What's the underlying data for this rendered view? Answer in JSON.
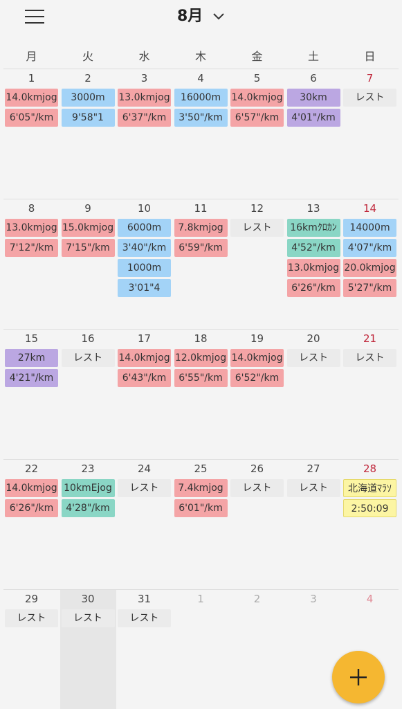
{
  "header": {
    "title": "8月"
  },
  "weekdays": [
    "月",
    "火",
    "水",
    "木",
    "金",
    "土",
    "日"
  ],
  "weeks": [
    {
      "days": [
        {
          "day": "1",
          "events": [
            {
              "text": "14.0kmjog",
              "color": "#f4a4a6"
            },
            {
              "text": "6'05\"/km",
              "color": "#f4a4a6"
            }
          ]
        },
        {
          "day": "2",
          "events": [
            {
              "text": "3000m",
              "color": "#a3d3f7"
            },
            {
              "text": "9'58\"1",
              "color": "#a3d3f7"
            }
          ]
        },
        {
          "day": "3",
          "events": [
            {
              "text": "13.0kmjog",
              "color": "#f4a4a6"
            },
            {
              "text": "6'37\"/km",
              "color": "#f4a4a6"
            }
          ]
        },
        {
          "day": "4",
          "events": [
            {
              "text": "16000m",
              "color": "#a3d3f7"
            },
            {
              "text": "3'50\"/km",
              "color": "#a3d3f7"
            }
          ]
        },
        {
          "day": "5",
          "events": [
            {
              "text": "14.0kmjog",
              "color": "#f4a4a6"
            },
            {
              "text": "6'57\"/km",
              "color": "#f4a4a6"
            }
          ]
        },
        {
          "day": "6",
          "events": [
            {
              "text": "30km",
              "color": "#bba7e2"
            },
            {
              "text": "4'01\"/km",
              "color": "#bba7e2"
            }
          ]
        },
        {
          "day": "7",
          "events": [
            {
              "text": "レスト",
              "color": "#ebebeb"
            }
          ]
        }
      ]
    },
    {
      "days": [
        {
          "day": "8",
          "events": [
            {
              "text": "13.0kmjog",
              "color": "#f4a4a6"
            },
            {
              "text": "7'12\"/km",
              "color": "#f4a4a6"
            }
          ]
        },
        {
          "day": "9",
          "events": [
            {
              "text": "15.0kmjog",
              "color": "#f4a4a6"
            },
            {
              "text": "7'15\"/km",
              "color": "#f4a4a6"
            }
          ]
        },
        {
          "day": "10",
          "events": [
            {
              "text": "6000m",
              "color": "#a3d3f7"
            },
            {
              "text": "3'40\"/km",
              "color": "#a3d3f7"
            },
            {
              "text": "1000m",
              "color": "#a3d3f7"
            },
            {
              "text": "3'01\"4",
              "color": "#a3d3f7"
            }
          ]
        },
        {
          "day": "11",
          "events": [
            {
              "text": "7.8kmjog",
              "color": "#f4a4a6"
            },
            {
              "text": "6'59\"/km",
              "color": "#f4a4a6"
            }
          ]
        },
        {
          "day": "12",
          "events": [
            {
              "text": "レスト",
              "color": "#ebebeb"
            }
          ]
        },
        {
          "day": "13",
          "events": [
            {
              "text": "16kmｸﾛｶﾝ",
              "color": "#8ad6c5"
            },
            {
              "text": "4'52\"/km",
              "color": "#8ad6c5"
            },
            {
              "text": "13.0kmjog",
              "color": "#f4a4a6"
            },
            {
              "text": "6'26\"/km",
              "color": "#f4a4a6"
            }
          ]
        },
        {
          "day": "14",
          "events": [
            {
              "text": "14000m",
              "color": "#a3d3f7"
            },
            {
              "text": "4'07\"/km",
              "color": "#a3d3f7"
            },
            {
              "text": "20.0kmjog",
              "color": "#f4a4a6"
            },
            {
              "text": "5'27\"/km",
              "color": "#f4a4a6"
            }
          ]
        }
      ]
    },
    {
      "days": [
        {
          "day": "15",
          "events": [
            {
              "text": "27km",
              "color": "#bba7e2"
            },
            {
              "text": "4'21\"/km",
              "color": "#bba7e2"
            }
          ]
        },
        {
          "day": "16",
          "events": [
            {
              "text": "レスト",
              "color": "#ebebeb"
            }
          ]
        },
        {
          "day": "17",
          "events": [
            {
              "text": "14.0kmjog",
              "color": "#f4a4a6"
            },
            {
              "text": "6'43\"/km",
              "color": "#f4a4a6"
            }
          ]
        },
        {
          "day": "18",
          "events": [
            {
              "text": "12.0kmjog",
              "color": "#f4a4a6"
            },
            {
              "text": "6'55\"/km",
              "color": "#f4a4a6"
            }
          ]
        },
        {
          "day": "19",
          "events": [
            {
              "text": "14.0kmjog",
              "color": "#f4a4a6"
            },
            {
              "text": "6'52\"/km",
              "color": "#f4a4a6"
            }
          ]
        },
        {
          "day": "20",
          "events": [
            {
              "text": "レスト",
              "color": "#ebebeb"
            }
          ]
        },
        {
          "day": "21",
          "events": [
            {
              "text": "レスト",
              "color": "#ebebeb"
            }
          ]
        }
      ]
    },
    {
      "days": [
        {
          "day": "22",
          "events": [
            {
              "text": "14.0kmjog",
              "color": "#f4a4a6"
            },
            {
              "text": "6'26\"/km",
              "color": "#f4a4a6"
            }
          ]
        },
        {
          "day": "23",
          "events": [
            {
              "text": "10kmEjog",
              "color": "#8ad6c5"
            },
            {
              "text": "4'28\"/km",
              "color": "#8ad6c5"
            }
          ]
        },
        {
          "day": "24",
          "events": [
            {
              "text": "レスト",
              "color": "#ebebeb"
            }
          ]
        },
        {
          "day": "25",
          "events": [
            {
              "text": "7.4kmjog",
              "color": "#f4a4a6"
            },
            {
              "text": "6'01\"/km",
              "color": "#f4a4a6"
            }
          ]
        },
        {
          "day": "26",
          "events": [
            {
              "text": "レスト",
              "color": "#ebebeb"
            }
          ]
        },
        {
          "day": "27",
          "events": [
            {
              "text": "レスト",
              "color": "#ebebeb"
            }
          ]
        },
        {
          "day": "28",
          "events": [
            {
              "text": "北海道ﾏﾗｿ",
              "color": "#fcf5a3"
            },
            {
              "text": "2:50:09",
              "color": "#fcf5a3"
            }
          ]
        }
      ]
    },
    {
      "days": [
        {
          "day": "29",
          "events": [
            {
              "text": "レスト",
              "color": "#ebebeb"
            }
          ]
        },
        {
          "day": "30",
          "events": [
            {
              "text": "レスト",
              "color": "#ebebeb"
            }
          ]
        },
        {
          "day": "31",
          "events": [
            {
              "text": "レスト",
              "color": "#ebebeb"
            }
          ]
        },
        {
          "day": "1",
          "events": []
        },
        {
          "day": "2",
          "events": []
        },
        {
          "day": "3",
          "events": []
        },
        {
          "day": "4",
          "events": []
        }
      ]
    }
  ]
}
